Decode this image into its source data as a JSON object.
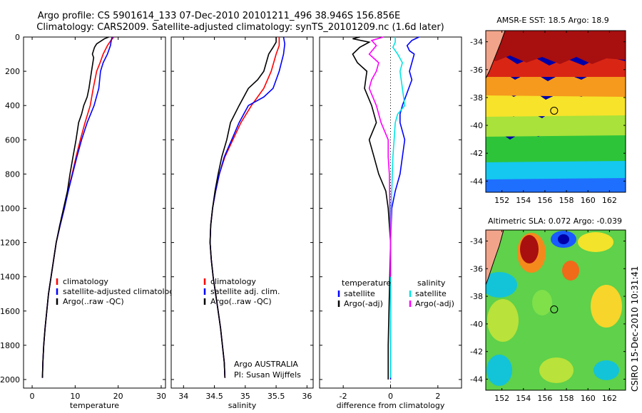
{
  "figure": {
    "title_line1": "Argo profile: CS 5901614_133 07-Dec-2010 20101211_496 38.946S 156.856E",
    "title_line2": "Climatology: CARS2009. Satellite-adjusted climatology: synTS_20101209.nc (1.6d later)",
    "side_label": "CSIRO 15-Dec-2010 10:31:41"
  },
  "chart_data": [
    {
      "type": "line",
      "id": "temperature",
      "xlabel": "temperature",
      "xlim": [
        -2,
        31
      ],
      "ylim": [
        2050,
        0
      ],
      "xticks": [
        0,
        10,
        20,
        30
      ],
      "yticks": [
        0,
        200,
        400,
        600,
        800,
        1000,
        1200,
        1400,
        1600,
        1800,
        2000
      ],
      "legend": [
        "climatology",
        "satellite-adjusted climatology",
        "Argo(..raw -QC)"
      ],
      "series": [
        {
          "name": "climatology",
          "color": "#ff0000",
          "points": [
            [
              19.0,
              0
            ],
            [
              18.3,
              20
            ],
            [
              17.5,
              50
            ],
            [
              16.5,
              100
            ],
            [
              15.8,
              150
            ],
            [
              15.0,
              200
            ],
            [
              14.2,
              300
            ],
            [
              13.5,
              400
            ],
            [
              12.3,
              500
            ],
            [
              11.2,
              600
            ],
            [
              10.2,
              700
            ],
            [
              9.3,
              800
            ],
            [
              8.3,
              900
            ],
            [
              7.5,
              1000
            ],
            [
              6.5,
              1100
            ],
            [
              5.6,
              1200
            ],
            [
              5.0,
              1300
            ],
            [
              4.4,
              1400
            ],
            [
              3.8,
              1500
            ],
            [
              3.4,
              1600
            ],
            [
              3.0,
              1700
            ],
            [
              2.7,
              1800
            ],
            [
              2.5,
              1900
            ],
            [
              2.4,
              1990
            ]
          ]
        },
        {
          "name": "satellite-adjusted climatology",
          "color": "#0000ff",
          "points": [
            [
              18.6,
              0
            ],
            [
              18.4,
              20
            ],
            [
              18.2,
              50
            ],
            [
              17.5,
              100
            ],
            [
              16.5,
              150
            ],
            [
              15.9,
              200
            ],
            [
              15.5,
              300
            ],
            [
              14.4,
              400
            ],
            [
              12.8,
              500
            ],
            [
              11.5,
              600
            ],
            [
              10.4,
              700
            ],
            [
              9.4,
              800
            ],
            [
              8.4,
              900
            ],
            [
              7.5,
              1000
            ],
            [
              6.5,
              1100
            ],
            [
              5.6,
              1200
            ],
            [
              5.0,
              1300
            ],
            [
              4.4,
              1400
            ],
            [
              3.8,
              1500
            ],
            [
              3.4,
              1600
            ],
            [
              3.0,
              1700
            ],
            [
              2.7,
              1800
            ],
            [
              2.5,
              1900
            ],
            [
              2.4,
              1990
            ]
          ]
        },
        {
          "name": "Argo(..raw -QC)",
          "color": "#000000",
          "points": [
            [
              17.8,
              0
            ],
            [
              16.8,
              10
            ],
            [
              15.0,
              40
            ],
            [
              14.5,
              60
            ],
            [
              14.0,
              100
            ],
            [
              14.3,
              120
            ],
            [
              13.8,
              200
            ],
            [
              13.2,
              300
            ],
            [
              12.8,
              350
            ],
            [
              12.0,
              400
            ],
            [
              11.5,
              450
            ],
            [
              10.8,
              500
            ],
            [
              10.2,
              600
            ],
            [
              9.5,
              700
            ],
            [
              8.8,
              800
            ],
            [
              8.2,
              900
            ],
            [
              7.3,
              1000
            ],
            [
              6.4,
              1100
            ],
            [
              5.6,
              1200
            ],
            [
              5.0,
              1300
            ],
            [
              4.4,
              1400
            ],
            [
              3.8,
              1500
            ],
            [
              3.4,
              1600
            ],
            [
              3.0,
              1700
            ],
            [
              2.7,
              1800
            ],
            [
              2.5,
              1900
            ],
            [
              2.4,
              1990
            ]
          ]
        }
      ]
    },
    {
      "type": "line",
      "id": "salinity",
      "xlabel": "salinity",
      "xlim": [
        33.8,
        36.1
      ],
      "ylim": [
        2050,
        0
      ],
      "xticks": [
        34,
        34.5,
        35,
        35.5,
        36
      ],
      "yticks": [
        0,
        200,
        400,
        600,
        800,
        1000,
        1200,
        1400,
        1600,
        1800,
        2000
      ],
      "legend": [
        "climatology",
        "satellite adj. clim.",
        "Argo(..raw -QC)"
      ],
      "annotation": [
        "Argo AUSTRALIA",
        "PI: Susan Wijffels"
      ],
      "series": [
        {
          "name": "climatology",
          "color": "#ff0000",
          "points": [
            [
              35.55,
              0
            ],
            [
              35.55,
              50
            ],
            [
              35.5,
              100
            ],
            [
              35.42,
              200
            ],
            [
              35.3,
              300
            ],
            [
              35.1,
              400
            ],
            [
              34.93,
              500
            ],
            [
              34.8,
              600
            ],
            [
              34.67,
              700
            ],
            [
              34.58,
              800
            ],
            [
              34.52,
              900
            ],
            [
              34.47,
              1000
            ],
            [
              34.44,
              1100
            ],
            [
              34.43,
              1200
            ],
            [
              34.45,
              1300
            ],
            [
              34.48,
              1400
            ],
            [
              34.52,
              1500
            ],
            [
              34.56,
              1600
            ],
            [
              34.6,
              1700
            ],
            [
              34.63,
              1800
            ],
            [
              34.66,
              1900
            ],
            [
              34.67,
              1990
            ]
          ]
        },
        {
          "name": "satellite adj. clim.",
          "color": "#0000ff",
          "points": [
            [
              35.62,
              0
            ],
            [
              35.64,
              40
            ],
            [
              35.62,
              100
            ],
            [
              35.55,
              200
            ],
            [
              35.45,
              300
            ],
            [
              35.3,
              350
            ],
            [
              35.05,
              400
            ],
            [
              34.9,
              500
            ],
            [
              34.78,
              600
            ],
            [
              34.66,
              700
            ],
            [
              34.58,
              800
            ],
            [
              34.52,
              900
            ],
            [
              34.47,
              1000
            ],
            [
              34.44,
              1100
            ],
            [
              34.43,
              1200
            ],
            [
              34.45,
              1300
            ],
            [
              34.48,
              1400
            ],
            [
              34.52,
              1500
            ],
            [
              34.56,
              1600
            ],
            [
              34.6,
              1700
            ],
            [
              34.63,
              1800
            ],
            [
              34.66,
              1900
            ],
            [
              34.67,
              1990
            ]
          ]
        },
        {
          "name": "Argo(..raw -QC)",
          "color": "#000000",
          "points": [
            [
              35.5,
              0
            ],
            [
              35.5,
              30
            ],
            [
              35.45,
              60
            ],
            [
              35.38,
              100
            ],
            [
              35.3,
              200
            ],
            [
              35.2,
              250
            ],
            [
              35.05,
              300
            ],
            [
              34.9,
              400
            ],
            [
              34.76,
              500
            ],
            [
              34.7,
              600
            ],
            [
              34.62,
              700
            ],
            [
              34.56,
              800
            ],
            [
              34.51,
              900
            ],
            [
              34.47,
              1000
            ],
            [
              34.44,
              1100
            ],
            [
              34.43,
              1200
            ],
            [
              34.45,
              1300
            ],
            [
              34.48,
              1400
            ],
            [
              34.52,
              1500
            ],
            [
              34.56,
              1600
            ],
            [
              34.6,
              1700
            ],
            [
              34.63,
              1800
            ],
            [
              34.66,
              1900
            ],
            [
              34.67,
              1990
            ]
          ]
        }
      ]
    },
    {
      "type": "line",
      "id": "difference",
      "xlabel": "difference from climatology",
      "xlim": [
        -3.0,
        3.0
      ],
      "ylim": [
        2050,
        0
      ],
      "xticks": [
        -2,
        0,
        2
      ],
      "yticks": [
        0,
        200,
        400,
        600,
        800,
        1000,
        1200,
        1400,
        1600,
        1800,
        2000
      ],
      "zero_line": 0,
      "legend_left_head": "temperature",
      "legend_right_head": "salinity",
      "legend_left": [
        "satellite",
        "Argo(-adj)"
      ],
      "legend_right": [
        "satellite",
        "Argo(-adj)"
      ],
      "series": [
        {
          "name": "temperature satellite",
          "color": "#0000ff",
          "points": [
            [
              1.2,
              0
            ],
            [
              0.9,
              20
            ],
            [
              0.7,
              50
            ],
            [
              0.8,
              80
            ],
            [
              1.0,
              100
            ],
            [
              0.9,
              150
            ],
            [
              0.8,
              200
            ],
            [
              0.9,
              250
            ],
            [
              0.5,
              400
            ],
            [
              0.4,
              450
            ],
            [
              0.4,
              500
            ],
            [
              0.6,
              600
            ],
            [
              0.5,
              700
            ],
            [
              0.4,
              800
            ],
            [
              0.2,
              900
            ],
            [
              0.05,
              1000
            ],
            [
              0,
              1200
            ],
            [
              0,
              2000
            ]
          ]
        },
        {
          "name": "temperature Argo(-adj)",
          "color": "#000000",
          "points": [
            [
              -1.3,
              0
            ],
            [
              -1.6,
              10
            ],
            [
              -0.9,
              30
            ],
            [
              -1.3,
              60
            ],
            [
              -1.6,
              100
            ],
            [
              -1.4,
              150
            ],
            [
              -1.0,
              200
            ],
            [
              -1.1,
              300
            ],
            [
              -0.8,
              400
            ],
            [
              -0.7,
              450
            ],
            [
              -0.6,
              500
            ],
            [
              -0.9,
              600
            ],
            [
              -0.7,
              700
            ],
            [
              -0.5,
              800
            ],
            [
              -0.2,
              900
            ],
            [
              -0.1,
              1000
            ],
            [
              0,
              1200
            ],
            [
              -0.05,
              1500
            ],
            [
              -0.1,
              1800
            ],
            [
              -0.1,
              2000
            ]
          ]
        },
        {
          "name": "salinity satellite",
          "color": "#00e5e5",
          "points": [
            [
              0.2,
              0
            ],
            [
              0.2,
              30
            ],
            [
              0.1,
              60
            ],
            [
              0.3,
              100
            ],
            [
              0.5,
              150
            ],
            [
              0.4,
              200
            ],
            [
              0.5,
              300
            ],
            [
              0.6,
              400
            ],
            [
              0.3,
              450
            ],
            [
              0.2,
              500
            ],
            [
              0.15,
              600
            ],
            [
              0.1,
              700
            ],
            [
              0.05,
              900
            ],
            [
              0.02,
              1000
            ],
            [
              0,
              1200
            ],
            [
              0,
              1990
            ]
          ]
        },
        {
          "name": "salinity Argo(-adj)",
          "color": "#ff00ff",
          "points": [
            [
              -0.3,
              0
            ],
            [
              -0.8,
              20
            ],
            [
              -0.6,
              50
            ],
            [
              -0.9,
              100
            ],
            [
              -0.5,
              150
            ],
            [
              -0.6,
              200
            ],
            [
              -0.8,
              250
            ],
            [
              -0.9,
              300
            ],
            [
              -0.6,
              400
            ],
            [
              -0.4,
              500
            ],
            [
              -0.1,
              600
            ],
            [
              -0.1,
              700
            ],
            [
              -0.05,
              800
            ],
            [
              -0.03,
              1000
            ],
            [
              0,
              1200
            ],
            [
              0,
              1400
            ]
          ]
        }
      ]
    },
    {
      "type": "heatmap",
      "id": "sst-map",
      "title": "AMSR-E SST: 18.5 Argo: 18.9",
      "xlim": [
        150.5,
        163.5
      ],
      "ylim": [
        -44.8,
        -33.2
      ],
      "xticks": [
        152,
        154,
        156,
        158,
        160,
        162
      ],
      "yticks": [
        -34,
        -36,
        -38,
        -40,
        -42,
        -44
      ],
      "marker": {
        "lon": 156.856,
        "lat": -38.946
      }
    },
    {
      "type": "heatmap",
      "id": "sla-map",
      "title": "Altimetric SLA: 0.072 Argo: -0.039",
      "xlim": [
        150.5,
        163.5
      ],
      "ylim": [
        -44.8,
        -33.2
      ],
      "xticks": [
        152,
        154,
        156,
        158,
        160,
        162
      ],
      "yticks": [
        -34,
        -36,
        -38,
        -40,
        -42,
        -44
      ],
      "marker": {
        "lon": 156.856,
        "lat": -38.946
      }
    }
  ]
}
